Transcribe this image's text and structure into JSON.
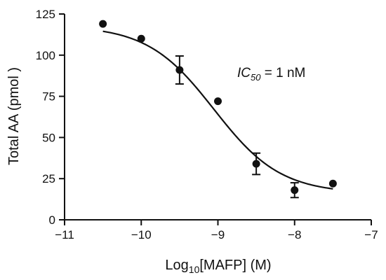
{
  "chart_data": {
    "type": "scatter",
    "xlabel": {
      "prefix": "Log",
      "sub": "10",
      "suffix": "[MAFP] (M)"
    },
    "ylabel": "Total AA (pmol )",
    "xlim": [
      -11,
      -7
    ],
    "ylim": [
      0,
      125
    ],
    "xticks": [
      -11,
      -10,
      -9,
      -8,
      -7
    ],
    "yticks": [
      0,
      25,
      50,
      75,
      100,
      125
    ],
    "xtick_labels": [
      "−11",
      "−10",
      "−9",
      "−8",
      "−7"
    ],
    "ytick_labels": [
      "0",
      "25",
      "50",
      "75",
      "100",
      "125"
    ],
    "points": [
      {
        "x": -10.5,
        "y": 119,
        "err": 0
      },
      {
        "x": -10.0,
        "y": 110,
        "err": 0
      },
      {
        "x": -9.5,
        "y": 91,
        "err": 8.5
      },
      {
        "x": -9.0,
        "y": 72,
        "err": 0
      },
      {
        "x": -8.5,
        "y": 34,
        "err": 6.5
      },
      {
        "x": -8.0,
        "y": 18,
        "err": 4.5
      },
      {
        "x": -7.5,
        "y": 22,
        "err": 0
      }
    ],
    "fit": {
      "top": 118,
      "bottom": 16,
      "logIC50": -9.05,
      "hill": -1.0,
      "x_range": [
        -10.5,
        -7.5
      ]
    },
    "annotation": {
      "ic": "IC",
      "sub": "50",
      "rest": " = 1 nM"
    },
    "grid": false,
    "legend": "none"
  }
}
